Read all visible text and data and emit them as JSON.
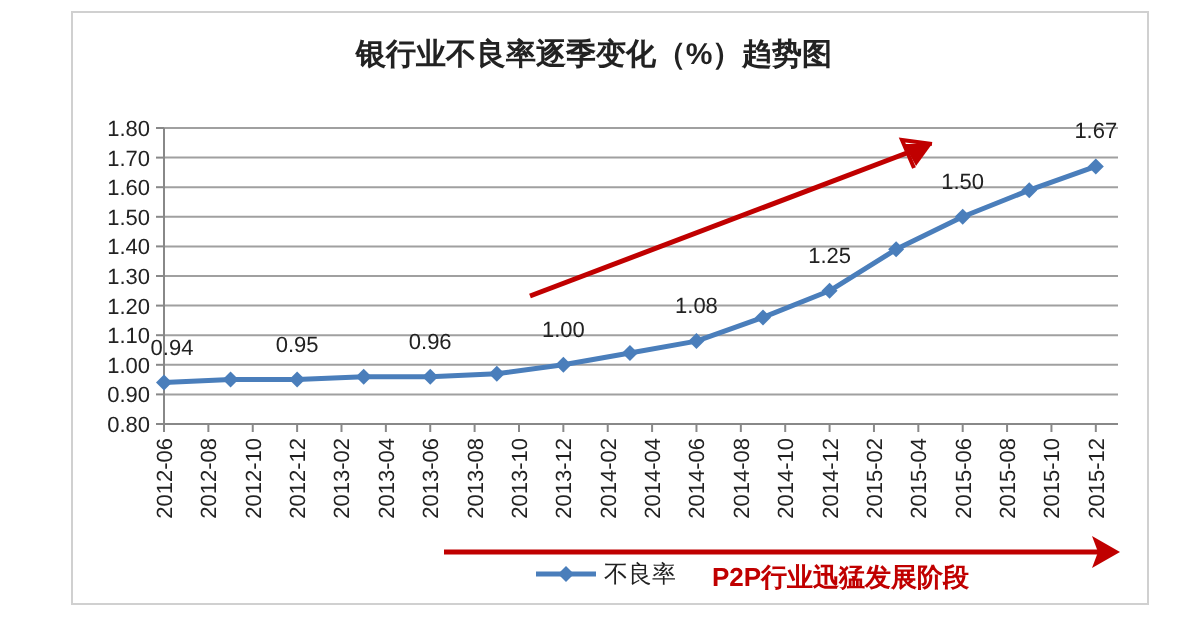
{
  "chart_data": {
    "type": "line",
    "title": "银行业不良率逐季变化（%）趋势图",
    "x": [
      "2012-06",
      "2012-09",
      "2012-12",
      "2013-03",
      "2013-06",
      "2013-09",
      "2013-12",
      "2014-03",
      "2014-06",
      "2014-09",
      "2014-12",
      "2015-03",
      "2015-06",
      "2015-09",
      "2015-12"
    ],
    "series": [
      {
        "name": "不良率",
        "color": "#4a7ebb",
        "values": [
          0.94,
          0.95,
          0.95,
          0.96,
          0.96,
          0.97,
          1.0,
          1.04,
          1.08,
          1.16,
          1.25,
          1.39,
          1.5,
          1.59,
          1.67
        ],
        "value_labels": [
          "0.94",
          null,
          "0.95",
          null,
          "0.96",
          null,
          "1.00",
          null,
          "1.08",
          null,
          "1.25",
          null,
          "1.50",
          null,
          "1.67"
        ]
      }
    ],
    "xlim": [
      "2012-06",
      "2016-01"
    ],
    "xticks": [
      "2012-06",
      "2012-08",
      "2012-10",
      "2012-12",
      "2013-02",
      "2013-04",
      "2013-06",
      "2013-08",
      "2013-10",
      "2013-12",
      "2014-02",
      "2014-04",
      "2014-06",
      "2014-08",
      "2014-10",
      "2014-12",
      "2015-02",
      "2015-04",
      "2015-06",
      "2015-08",
      "2015-10",
      "2015-12"
    ],
    "ylim": [
      0.8,
      1.8
    ],
    "yticks": [
      {
        "value": 0.8,
        "label": "0.80"
      },
      {
        "value": 0.9,
        "label": "0.90"
      },
      {
        "value": 1.0,
        "label": "1.00"
      },
      {
        "value": 1.1,
        "label": "1.10"
      },
      {
        "value": 1.2,
        "label": "1.20"
      },
      {
        "value": 1.3,
        "label": "1.30"
      },
      {
        "value": 1.4,
        "label": "1.40"
      },
      {
        "value": 1.5,
        "label": "1.50"
      },
      {
        "value": 1.6,
        "label": "1.60"
      },
      {
        "value": 1.7,
        "label": "1.70"
      },
      {
        "value": 1.8,
        "label": "1.80"
      }
    ],
    "grid": "y",
    "legend": "bottom",
    "marker": "diamond",
    "line_style": "solid",
    "annotations": [
      "P2P行业迅猛发展阶段"
    ]
  }
}
